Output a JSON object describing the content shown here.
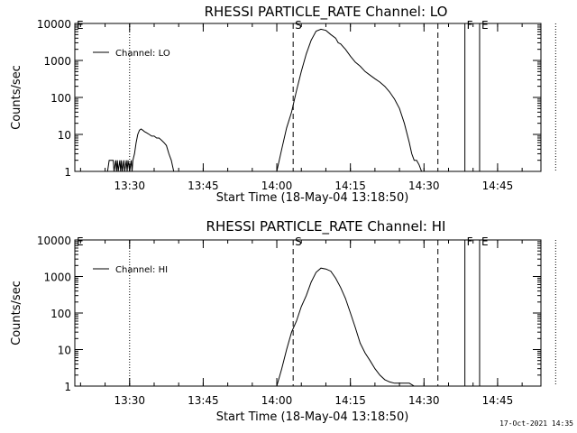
{
  "footer": {
    "timestamp": "17-Oct-2021 14:35"
  },
  "chart_data": [
    {
      "type": "line",
      "title": "RHESSI PARTICLE_RATE Channel: LO",
      "xlabel": "Start Time (18-May-04 13:18:50)",
      "ylabel": "Counts/sec",
      "yscale": "log",
      "ylim": [
        1,
        10000
      ],
      "xlim_minutes_after_start": [
        0,
        95
      ],
      "xticks": [
        "13:30",
        "13:45",
        "14:00",
        "14:15",
        "14:30",
        "14:45"
      ],
      "yticks": [
        "1",
        "10",
        "100",
        "1000",
        "10000"
      ],
      "legend": "Channel: LO",
      "series": [
        {
          "name": "Channel: LO",
          "x": [
            "13:25:30",
            "13:25:50",
            "13:26:00",
            "13:26:40",
            "13:26:50",
            "13:27:10",
            "13:27:20",
            "13:27:30",
            "13:27:40",
            "13:28:00",
            "13:28:10",
            "13:28:20",
            "13:28:30",
            "13:28:50",
            "13:29:00",
            "13:29:20",
            "13:29:30",
            "13:29:40",
            "13:30:00",
            "13:30:20",
            "13:30:30",
            "13:30:40",
            "13:31:00",
            "13:31:20",
            "13:31:40",
            "13:32:00",
            "13:32:20",
            "13:32:40",
            "13:33:00",
            "13:33:30",
            "13:34:00",
            "13:34:30",
            "13:35:00",
            "13:35:30",
            "13:36:00",
            "13:36:30",
            "13:37:00",
            "13:37:30",
            "13:38:00",
            "13:38:30",
            "13:39:00",
            "13:39:20",
            "13:39:40",
            "13:40:00",
            "14:00:00",
            "14:01:00",
            "14:02:00",
            "14:03:00",
            "14:04:00",
            "14:05:00",
            "14:06:00",
            "14:07:00",
            "14:08:00",
            "14:09:00",
            "14:10:00",
            "14:11:00",
            "14:12:00",
            "14:12:30",
            "14:13:00",
            "14:14:00",
            "14:15:00",
            "14:16:00",
            "14:17:00",
            "14:18:00",
            "14:19:00",
            "14:20:00",
            "14:21:00",
            "14:22:00",
            "14:23:00",
            "14:24:00",
            "14:25:00",
            "14:26:00",
            "14:27:00",
            "14:27:30",
            "14:28:00",
            "14:28:30",
            "14:29:00",
            "14:29:30",
            "14:30:00",
            "14:30:30"
          ],
          "y": [
            1,
            2,
            2,
            2,
            1,
            2,
            1,
            2,
            1,
            2,
            1,
            2,
            1,
            2,
            1,
            2,
            1,
            2,
            1,
            2,
            1,
            2,
            3,
            6,
            10,
            13,
            14,
            13,
            12,
            11,
            10,
            9,
            9,
            8,
            8,
            7,
            6,
            5,
            3,
            2,
            1,
            1,
            1,
            1,
            1,
            4,
            15,
            40,
            150,
            500,
            1500,
            3500,
            6200,
            7000,
            6500,
            5000,
            4000,
            3000,
            2800,
            2000,
            1300,
            900,
            700,
            500,
            400,
            320,
            260,
            200,
            140,
            90,
            50,
            20,
            6,
            3,
            2,
            2,
            1.5,
            1,
            1,
            1
          ]
        }
      ],
      "annotations": [
        {
          "text": "E",
          "time": "13:18:50",
          "style": "none"
        },
        {
          "text": "",
          "time": "13:30:00",
          "style": "dotted"
        },
        {
          "text": "S",
          "time": "14:03:20",
          "style": "dashed"
        },
        {
          "text": "",
          "time": "14:32:50",
          "style": "dashed"
        },
        {
          "text": "F",
          "time": "14:38:20",
          "style": "solid"
        },
        {
          "text": "E",
          "time": "14:41:20",
          "style": "solid"
        },
        {
          "text": "",
          "time": "14:56:50",
          "style": "dotted"
        }
      ]
    },
    {
      "type": "line",
      "title": "RHESSI PARTICLE_RATE Channel: HI",
      "xlabel": "Start Time (18-May-04 13:18:50)",
      "ylabel": "Counts/sec",
      "yscale": "log",
      "ylim": [
        1,
        10000
      ],
      "xlim_minutes_after_start": [
        0,
        95
      ],
      "xticks": [
        "13:30",
        "13:45",
        "14:00",
        "14:15",
        "14:30",
        "14:45"
      ],
      "yticks": [
        "1",
        "10",
        "100",
        "1000",
        "10000"
      ],
      "legend": "Channel: HI",
      "series": [
        {
          "name": "Channel: HI",
          "x": [
            "14:00:00",
            "14:01:00",
            "14:02:00",
            "14:03:00",
            "14:04:00",
            "14:05:00",
            "14:06:00",
            "14:07:00",
            "14:08:00",
            "14:09:00",
            "14:10:00",
            "14:11:00",
            "14:12:00",
            "14:13:00",
            "14:14:00",
            "14:15:00",
            "14:16:00",
            "14:17:00",
            "14:18:00",
            "14:19:00",
            "14:20:00",
            "14:21:00",
            "14:22:00",
            "14:23:00",
            "14:24:00",
            "14:25:00",
            "14:26:00",
            "14:27:00",
            "14:28:00"
          ],
          "y": [
            1,
            3,
            10,
            30,
            60,
            150,
            300,
            700,
            1300,
            1700,
            1600,
            1400,
            900,
            500,
            250,
            100,
            40,
            15,
            8,
            5,
            3,
            2,
            1.5,
            1.3,
            1.2,
            1.2,
            1.2,
            1.2,
            1
          ]
        }
      ],
      "annotations": [
        {
          "text": "E",
          "time": "13:18:50",
          "style": "none"
        },
        {
          "text": "",
          "time": "13:30:00",
          "style": "dotted"
        },
        {
          "text": "S",
          "time": "14:03:20",
          "style": "dashed"
        },
        {
          "text": "",
          "time": "14:32:50",
          "style": "dashed"
        },
        {
          "text": "F",
          "time": "14:38:20",
          "style": "solid"
        },
        {
          "text": "E",
          "time": "14:41:20",
          "style": "solid"
        },
        {
          "text": "",
          "time": "14:56:50",
          "style": "dotted"
        }
      ]
    }
  ]
}
